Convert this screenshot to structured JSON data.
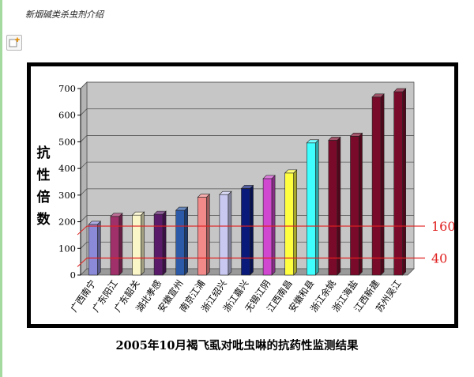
{
  "page": {
    "title": "新烟碱类杀虫剂介绍"
  },
  "toolbar": {
    "add_icon": "add-note-icon"
  },
  "colors": {
    "wall": "#c6c6c6",
    "floor": "#9a9a9a",
    "threshold": "#e02020",
    "threshold_label": "#e02020"
  },
  "chart_data": {
    "type": "bar",
    "title": "2005年10月褐飞虱对吡虫啉的抗药性监测结果",
    "xlabel": "",
    "ylabel": "抗性倍数",
    "ylim": [
      0,
      700
    ],
    "yticks": [
      0,
      100,
      200,
      300,
      400,
      500,
      600,
      700
    ],
    "grid": true,
    "categories": [
      "广西南宁",
      "广东阳江",
      "广东韶关",
      "湖北孝感",
      "安徽宣州",
      "南京江浦",
      "浙江绍兴",
      "浙江嘉兴",
      "无锡江阴",
      "江西南昌",
      "安徽和县",
      "浙江余姚",
      "浙江海盐",
      "江西新建",
      "苏州吴江"
    ],
    "values": [
      190,
      220,
      225,
      228,
      243,
      292,
      302,
      325,
      362,
      383,
      496,
      506,
      521,
      668,
      688
    ],
    "bar_colors": [
      "#8a8ad8",
      "#a0306a",
      "#fbf6c8",
      "#5a1a6a",
      "#2c5aa8",
      "#f28a8a",
      "#c8c8f0",
      "#0a1a7a",
      "#d048d0",
      "#ffff40",
      "#40ffff",
      "#7a0a2a",
      "#7a0a2a",
      "#7a0a2a",
      "#7a0a2a"
    ],
    "thresholds": [
      {
        "value": 160,
        "label": "160"
      },
      {
        "value": 40,
        "label": "40"
      }
    ]
  }
}
